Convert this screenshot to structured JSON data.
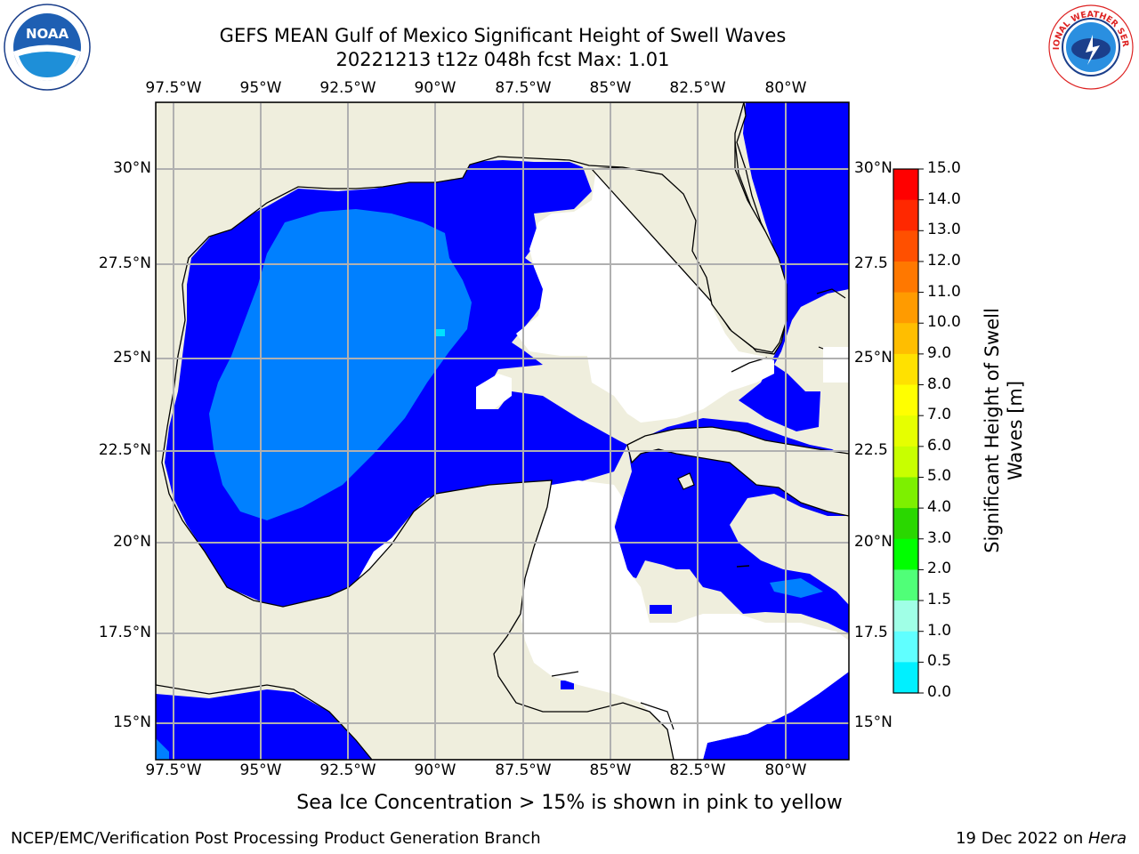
{
  "header": {
    "title_line1": "GEFS MEAN Gulf of Mexico Significant Height of Swell Waves",
    "title_line2": "20221213 t12z 048h fcst   Max: 1.01"
  },
  "logos": {
    "left": {
      "name": "NOAA",
      "ring_text": "NATIONAL OCEANIC AND ATMOSPHERIC ADMINISTRATION · U.S. DEPARTMENT OF COMMERCE"
    },
    "right": {
      "name": "NATIONAL WEATHER SERVICE"
    }
  },
  "map": {
    "lon_ticks": [
      "97.5°W",
      "95°W",
      "92.5°W",
      "90°W",
      "87.5°W",
      "85°W",
      "82.5°W",
      "80°W"
    ],
    "lat_ticks_left": [
      "30°N",
      "27.5°N",
      "25°N",
      "22.5°N",
      "20°N",
      "17.5°N",
      "15°N"
    ],
    "lat_ticks_right": [
      "30°N",
      "27.5",
      "25°N",
      "22.5",
      "20°N",
      "17.5",
      "15°N"
    ],
    "colors": {
      "land": "#efeedd",
      "ocean_low": "#0000ff",
      "ocean_mid": "#0080ff",
      "ocean_high": "#00d0ff",
      "grid": "#b0b0b0"
    }
  },
  "colorbar": {
    "label_line1": "Significant Height of Swell",
    "label_line2": "Waves [m]",
    "ticks": [
      "15.0",
      "14.0",
      "13.0",
      "12.0",
      "11.0",
      "10.0",
      "9.0",
      "8.0",
      "7.0",
      "6.0",
      "5.0",
      "4.0",
      "3.0",
      "2.0",
      "1.5",
      "1.0",
      "0.5",
      "0.0"
    ],
    "colors": [
      "#ff0000",
      "#ff2800",
      "#ff5000",
      "#ff7800",
      "#ff9b00",
      "#ffbe00",
      "#ffe100",
      "#ffff00",
      "#e6ff00",
      "#c8ff00",
      "#7df000",
      "#2ad700",
      "#00ff00",
      "#50ff78",
      "#a0ffe6",
      "#60ffff",
      "#00f0ff",
      "#0080ff",
      "#0000ff"
    ]
  },
  "notes": {
    "sea_ice": "Sea Ice Concentration > 15% is shown in pink to yellow"
  },
  "footer": {
    "left": "NCEP/EMC/Verification Post Processing Product Generation Branch",
    "right_prefix": "19 Dec 2022 on ",
    "right_host": "Hera"
  }
}
